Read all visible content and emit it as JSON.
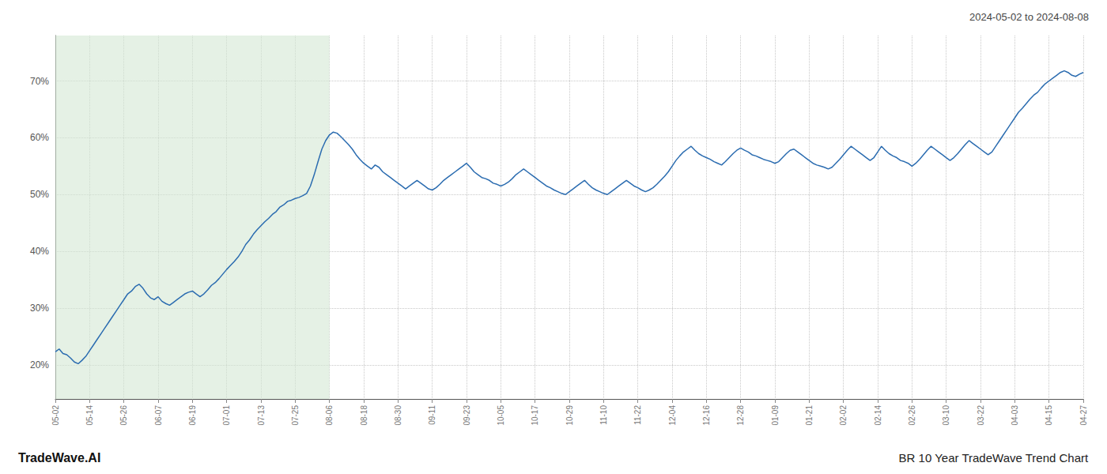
{
  "chart_data": {
    "type": "line",
    "title": "BR 10 Year TradeWave Trend Chart",
    "subtitle": "2024-05-02 to 2024-08-08",
    "annotations": [
      "TradeWave.AI"
    ],
    "color": "#2b6cb0",
    "grid": true,
    "ylim": [
      14,
      78
    ],
    "yticks": [
      {
        "value": 20,
        "label": "20%"
      },
      {
        "value": 30,
        "label": "30%"
      },
      {
        "value": 40,
        "label": "40%"
      },
      {
        "value": 50,
        "label": "50%"
      },
      {
        "value": 60,
        "label": "60%"
      },
      {
        "value": 70,
        "label": "70%"
      }
    ],
    "shaded_span": {
      "start": "05-02",
      "end": "08-06",
      "color": "#d4e8d4"
    },
    "categories": [
      "05-02",
      null,
      null,
      null,
      null,
      null,
      null,
      null,
      null,
      "05-14",
      null,
      null,
      null,
      null,
      null,
      null,
      null,
      null,
      "05-26",
      null,
      null,
      null,
      null,
      null,
      null,
      null,
      null,
      "06-07",
      null,
      null,
      null,
      null,
      null,
      null,
      null,
      null,
      "06-19",
      null,
      null,
      null,
      null,
      null,
      null,
      null,
      null,
      "07-01",
      null,
      null,
      null,
      null,
      null,
      null,
      null,
      null,
      "07-13",
      null,
      null,
      null,
      null,
      null,
      null,
      null,
      null,
      "07-25",
      null,
      null,
      null,
      null,
      null,
      null,
      null,
      null,
      "08-06",
      null,
      null,
      null,
      null,
      null,
      null,
      null,
      null,
      "08-18",
      null,
      null,
      null,
      null,
      null,
      null,
      null,
      null,
      "08-30",
      null,
      null,
      null,
      null,
      null,
      null,
      null,
      null,
      "09-11",
      null,
      null,
      null,
      null,
      null,
      null,
      null,
      null,
      "09-23",
      null,
      null,
      null,
      null,
      null,
      null,
      null,
      null,
      "10-05",
      null,
      null,
      null,
      null,
      null,
      null,
      null,
      null,
      "10-17",
      null,
      null,
      null,
      null,
      null,
      null,
      null,
      null,
      "10-29",
      null,
      null,
      null,
      null,
      null,
      null,
      null,
      null,
      "11-10",
      null,
      null,
      null,
      null,
      null,
      null,
      null,
      null,
      "11-22",
      null,
      null,
      null,
      null,
      null,
      null,
      null,
      null,
      "12-04",
      null,
      null,
      null,
      null,
      null,
      null,
      null,
      null,
      "12-16",
      null,
      null,
      null,
      null,
      null,
      null,
      null,
      null,
      "12-28",
      null,
      null,
      null,
      null,
      null,
      null,
      null,
      null,
      "01-09",
      null,
      null,
      null,
      null,
      null,
      null,
      null,
      null,
      "01-21",
      null,
      null,
      null,
      null,
      null,
      null,
      null,
      null,
      "02-02",
      null,
      null,
      null,
      null,
      null,
      null,
      null,
      null,
      "02-14",
      null,
      null,
      null,
      null,
      null,
      null,
      null,
      null,
      "02-26",
      null,
      null,
      null,
      null,
      null,
      null,
      null,
      null,
      "03-10",
      null,
      null,
      null,
      null,
      null,
      null,
      null,
      null,
      "03-22",
      null,
      null,
      null,
      null,
      null,
      null,
      null,
      null,
      "04-03",
      null,
      null,
      null,
      null,
      null,
      null,
      null,
      null,
      "04-15",
      null,
      null,
      null,
      null,
      null,
      null,
      null,
      null,
      "04-27"
    ],
    "values": [
      22.3,
      22.8,
      22.0,
      21.8,
      21.2,
      20.5,
      20.2,
      20.8,
      21.5,
      22.5,
      23.5,
      24.5,
      25.5,
      26.5,
      27.5,
      28.5,
      29.5,
      30.5,
      31.5,
      32.5,
      33.0,
      33.8,
      34.2,
      33.5,
      32.5,
      31.8,
      31.5,
      32.0,
      31.2,
      30.8,
      30.5,
      31.0,
      31.5,
      32.0,
      32.5,
      32.8,
      33.0,
      32.5,
      32.0,
      32.5,
      33.2,
      34.0,
      34.5,
      35.2,
      36.0,
      36.8,
      37.5,
      38.2,
      39.0,
      40.0,
      41.2,
      42.0,
      43.0,
      43.8,
      44.5,
      45.2,
      45.8,
      46.5,
      47.0,
      47.8,
      48.2,
      48.8,
      49.0,
      49.3,
      49.5,
      49.8,
      50.2,
      51.5,
      53.5,
      55.8,
      58.0,
      59.5,
      60.5,
      61.0,
      60.8,
      60.2,
      59.5,
      58.8,
      58.0,
      57.0,
      56.2,
      55.5,
      55.0,
      54.5,
      55.2,
      54.8,
      54.0,
      53.5,
      53.0,
      52.5,
      52.0,
      51.5,
      51.0,
      51.5,
      52.0,
      52.5,
      52.0,
      51.5,
      51.0,
      50.8,
      51.2,
      51.8,
      52.5,
      53.0,
      53.5,
      54.0,
      54.5,
      55.0,
      55.5,
      54.8,
      54.0,
      53.5,
      53.0,
      52.8,
      52.5,
      52.0,
      51.8,
      51.5,
      51.8,
      52.2,
      52.8,
      53.5,
      54.0,
      54.5,
      54.0,
      53.5,
      53.0,
      52.5,
      52.0,
      51.5,
      51.2,
      50.8,
      50.5,
      50.2,
      50.0,
      50.5,
      51.0,
      51.5,
      52.0,
      52.5,
      51.8,
      51.2,
      50.8,
      50.5,
      50.2,
      50.0,
      50.5,
      51.0,
      51.5,
      52.0,
      52.5,
      52.0,
      51.5,
      51.2,
      50.8,
      50.5,
      50.8,
      51.2,
      51.8,
      52.5,
      53.2,
      54.0,
      55.0,
      56.0,
      56.8,
      57.5,
      58.0,
      58.5,
      57.8,
      57.2,
      56.8,
      56.5,
      56.2,
      55.8,
      55.5,
      55.2,
      55.8,
      56.5,
      57.2,
      57.8,
      58.2,
      57.8,
      57.5,
      57.0,
      56.8,
      56.5,
      56.2,
      56.0,
      55.8,
      55.5,
      55.8,
      56.5,
      57.2,
      57.8,
      58.0,
      57.5,
      57.0,
      56.5,
      56.0,
      55.5,
      55.2,
      55.0,
      54.8,
      54.5,
      54.8,
      55.5,
      56.2,
      57.0,
      57.8,
      58.5,
      58.0,
      57.5,
      57.0,
      56.5,
      56.0,
      56.5,
      57.5,
      58.5,
      57.8,
      57.2,
      56.8,
      56.5,
      56.0,
      55.8,
      55.5,
      55.0,
      55.5,
      56.2,
      57.0,
      57.8,
      58.5,
      58.0,
      57.5,
      57.0,
      56.5,
      56.0,
      56.5,
      57.2,
      58.0,
      58.8,
      59.5,
      59.0,
      58.5,
      58.0,
      57.5,
      57.0,
      57.5,
      58.5,
      59.5,
      60.5,
      61.5,
      62.5,
      63.5,
      64.5,
      65.2,
      66.0,
      66.8,
      67.5,
      68.0,
      68.8,
      69.5,
      70.0,
      70.5,
      71.0,
      71.5,
      71.8,
      71.5,
      71.0,
      70.8,
      71.2,
      71.5
    ]
  }
}
